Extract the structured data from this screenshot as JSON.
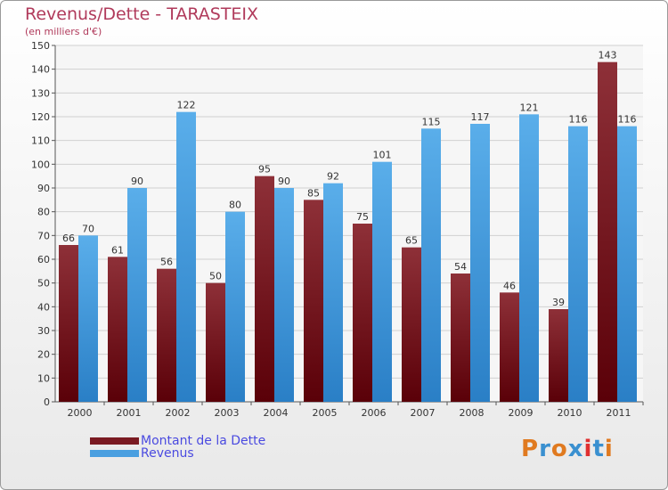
{
  "chart_data": {
    "type": "bar",
    "title": "Revenus/Dette - TARASTEIX",
    "subtitle": "(en milliers d'€)",
    "categories": [
      "2000",
      "2001",
      "2002",
      "2003",
      "2004",
      "2005",
      "2006",
      "2007",
      "2008",
      "2009",
      "2010",
      "2011"
    ],
    "series": [
      {
        "name": "Montant de la Dette",
        "color": "#7a1a22",
        "values": [
          66,
          61,
          56,
          50,
          95,
          85,
          75,
          65,
          54,
          46,
          39,
          143
        ]
      },
      {
        "name": "Revenus",
        "color": "#4a9fe0",
        "values": [
          70,
          90,
          122,
          80,
          90,
          92,
          101,
          115,
          117,
          121,
          116,
          116
        ]
      }
    ],
    "ylim": [
      0,
      150
    ],
    "ytick_step": 10,
    "grid": true,
    "legend": "bottom-left"
  },
  "logo": {
    "text": "Proxiti"
  }
}
